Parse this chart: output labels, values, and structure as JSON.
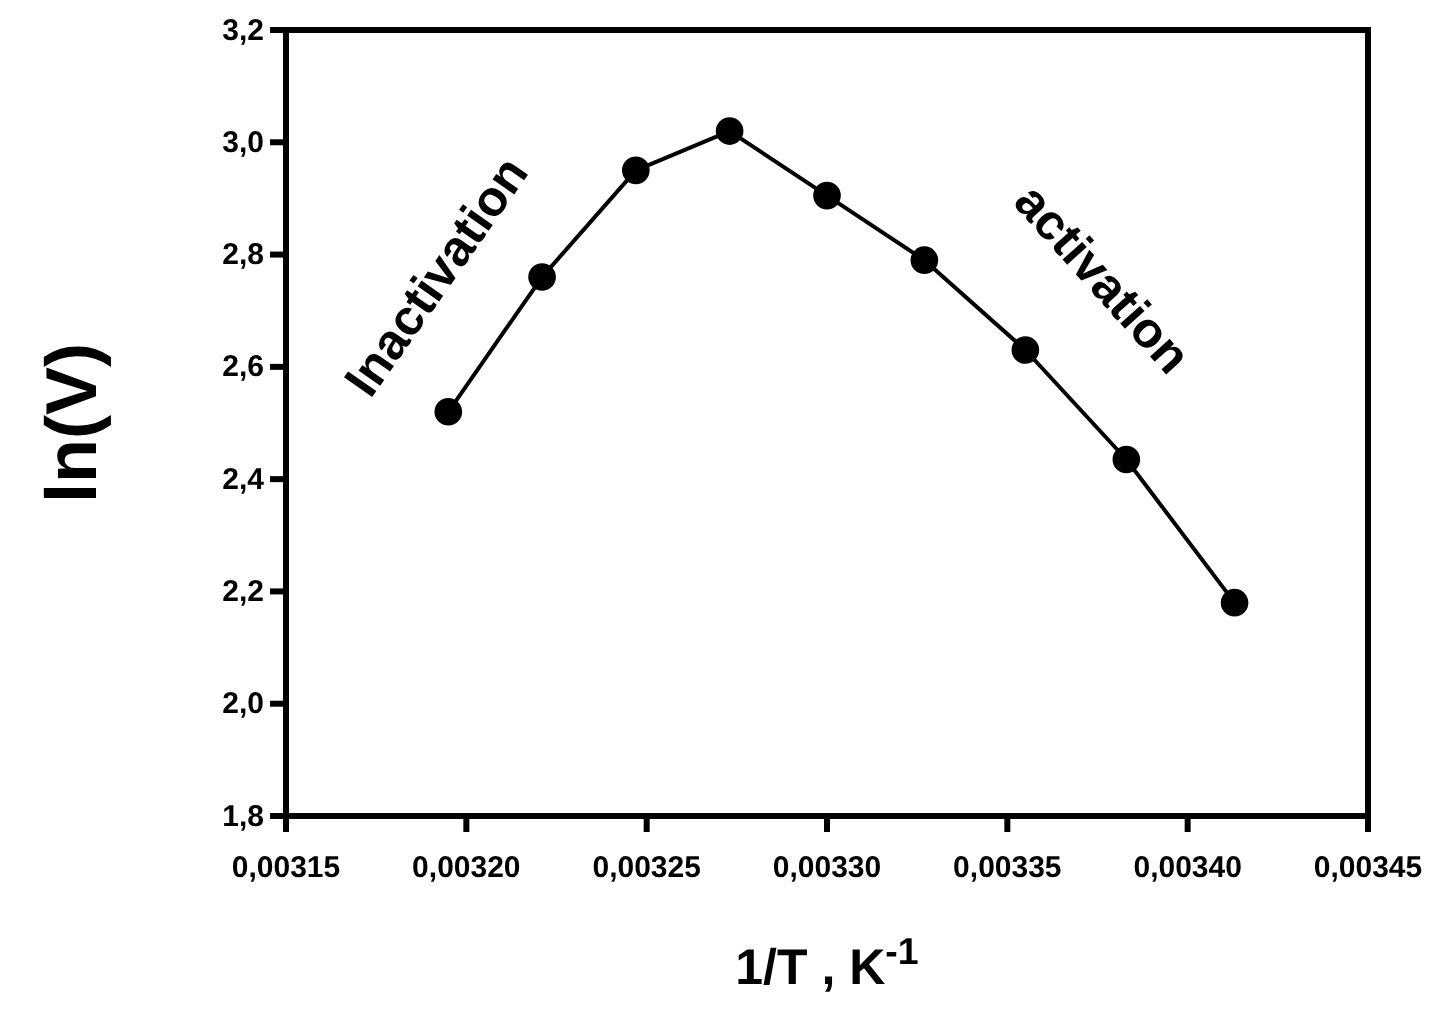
{
  "chart_data": {
    "type": "line",
    "xlabel": "1/T , K$^{-1}$",
    "ylabel": "ln(V)",
    "x": [
      0.003195,
      0.003221,
      0.003247,
      0.003273,
      0.0033,
      0.003327,
      0.003355,
      0.003383,
      0.003413
    ],
    "series": [
      {
        "color": "#000000",
        "values": [
          2.52,
          2.76,
          2.95,
          3.02,
          2.905,
          2.79,
          2.63,
          2.435,
          2.18
        ]
      }
    ],
    "xlim": [
      0.00315,
      0.00345
    ],
    "xticks": [
      {
        "value": 0.00315,
        "label": "0,00315"
      },
      {
        "value": 0.0032,
        "label": "0,00320"
      },
      {
        "value": 0.00325,
        "label": "0,00325"
      },
      {
        "value": 0.0033,
        "label": "0,00330"
      },
      {
        "value": 0.00335,
        "label": "0,00335"
      },
      {
        "value": 0.0034,
        "label": "0,00340"
      },
      {
        "value": 0.00345,
        "label": "0,00345"
      }
    ],
    "ylim": [
      1.8,
      3.2
    ],
    "yticks": [
      {
        "value": 1.8,
        "label": "1,8"
      },
      {
        "value": 2.0,
        "label": "2,0"
      },
      {
        "value": 2.2,
        "label": "2,2"
      },
      {
        "value": 2.4,
        "label": "2,4"
      },
      {
        "value": 2.6,
        "label": "2,6"
      },
      {
        "value": 2.8,
        "label": "2,8"
      },
      {
        "value": 3.0,
        "label": "3,0"
      },
      {
        "value": 3.2,
        "label": "3,2"
      }
    ],
    "annotations": [
      "Inactivation",
      "activation"
    ],
    "marker": "circle",
    "line_style": "solid",
    "grid": false
  }
}
